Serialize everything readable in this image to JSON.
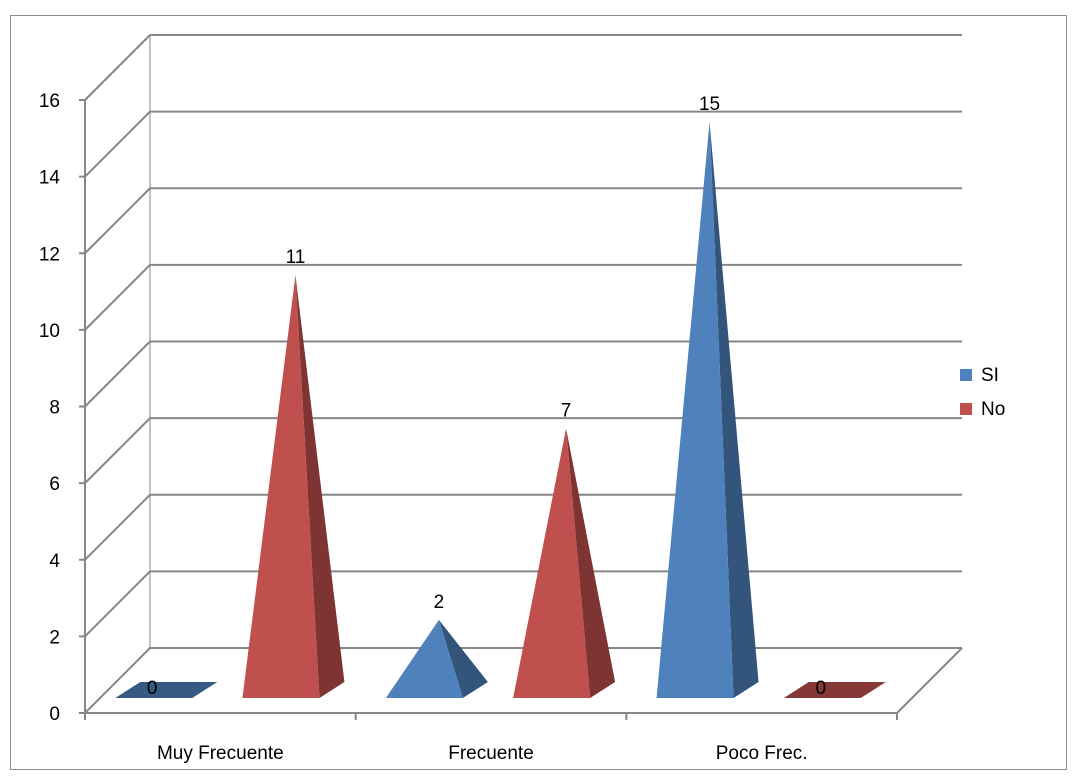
{
  "chart_data": {
    "type": "bar",
    "style": "3d-pyramid",
    "categories": [
      "Muy Frecuente",
      "Frecuente",
      "Poco Frec."
    ],
    "series": [
      {
        "name": "SI",
        "values": [
          0,
          2,
          15
        ],
        "color": "#4F81BD"
      },
      {
        "name": "No",
        "values": [
          11,
          7,
          0
        ],
        "color": "#C0504D"
      }
    ],
    "y_ticks": [
      "0",
      "2",
      "4",
      "6",
      "8",
      "10",
      "12",
      "14",
      "16"
    ],
    "ylim": [
      0,
      16
    ],
    "data_labels": true,
    "grid": true,
    "legend_position": "right"
  }
}
